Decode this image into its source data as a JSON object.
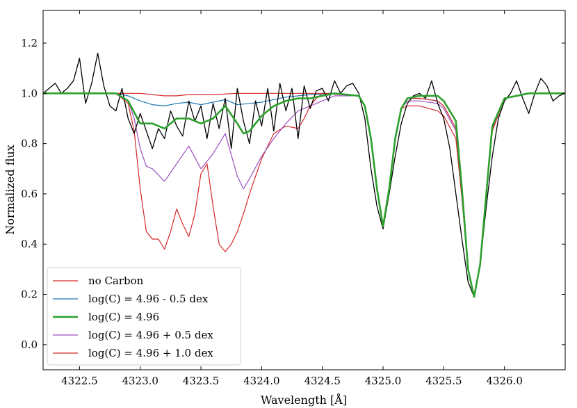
{
  "chart_data": {
    "type": "line",
    "title": "",
    "xlabel": "Wavelength [Å]",
    "ylabel": "Normalized flux",
    "xlim": [
      4322.2,
      4326.5
    ],
    "ylim": [
      -0.1,
      1.33
    ],
    "x_ticks": [
      4322.5,
      4323.0,
      4323.5,
      4324.0,
      4324.5,
      4325.0,
      4325.5,
      4326.0
    ],
    "x_tick_labels": [
      "4322.5",
      "4323.0",
      "4323.5",
      "4324.0",
      "4324.5",
      "4325.0",
      "4325.5",
      "4326.0"
    ],
    "y_ticks": [
      0.0,
      0.2,
      0.4,
      0.6,
      0.8,
      1.0,
      1.2
    ],
    "y_tick_labels": [
      "0.0",
      "0.2",
      "0.4",
      "0.6",
      "0.8",
      "1.0",
      "1.2"
    ],
    "grid": false,
    "legend_position": "lower-left",
    "observed": {
      "color": "#000000",
      "x": [
        4322.2,
        4322.25,
        4322.3,
        4322.35,
        4322.4,
        4322.45,
        4322.5,
        4322.55,
        4322.6,
        4322.65,
        4322.7,
        4322.75,
        4322.8,
        4322.85,
        4322.9,
        4322.95,
        4323.0,
        4323.05,
        4323.1,
        4323.15,
        4323.2,
        4323.25,
        4323.3,
        4323.35,
        4323.4,
        4323.45,
        4323.5,
        4323.55,
        4323.6,
        4323.65,
        4323.7,
        4323.75,
        4323.8,
        4323.85,
        4323.9,
        4323.95,
        4324.0,
        4324.05,
        4324.1,
        4324.15,
        4324.2,
        4324.25,
        4324.3,
        4324.35,
        4324.4,
        4324.45,
        4324.5,
        4324.55,
        4324.6,
        4324.65,
        4324.7,
        4324.75,
        4324.8,
        4324.85,
        4324.9,
        4324.95,
        4325.0,
        4325.05,
        4325.1,
        4325.15,
        4325.2,
        4325.25,
        4325.3,
        4325.35,
        4325.4,
        4325.45,
        4325.5,
        4325.55,
        4325.6,
        4325.65,
        4325.7,
        4325.75,
        4325.8,
        4325.85,
        4325.9,
        4325.95,
        4326.0,
        4326.05,
        4326.1,
        4326.15,
        4326.2,
        4326.25,
        4326.3,
        4326.35,
        4326.4,
        4326.45,
        4326.5
      ],
      "y": [
        1.0,
        1.02,
        1.04,
        1.0,
        1.02,
        1.05,
        1.14,
        0.96,
        1.04,
        1.16,
        1.03,
        0.95,
        0.93,
        1.02,
        0.9,
        0.84,
        0.92,
        0.85,
        0.78,
        0.86,
        0.82,
        0.93,
        0.87,
        0.83,
        0.97,
        0.89,
        0.95,
        0.82,
        0.96,
        0.86,
        0.98,
        0.78,
        1.02,
        0.89,
        0.8,
        0.97,
        0.87,
        1.02,
        0.85,
        1.04,
        0.93,
        1.02,
        0.82,
        1.03,
        0.94,
        1.01,
        1.02,
        0.97,
        1.05,
        1.0,
        1.03,
        1.04,
        1.0,
        0.9,
        0.7,
        0.55,
        0.46,
        0.6,
        0.75,
        0.88,
        0.96,
        0.99,
        1.0,
        0.98,
        1.05,
        0.96,
        0.9,
        0.78,
        0.6,
        0.42,
        0.25,
        0.19,
        0.32,
        0.55,
        0.75,
        0.9,
        0.97,
        1.0,
        1.05,
        0.98,
        0.92,
        1.0,
        1.06,
        1.03,
        0.97,
        0.99,
        1.0
      ]
    },
    "series": [
      {
        "name": "no Carbon",
        "color": "#d62728",
        "width": 1.2,
        "x": [
          4322.2,
          4322.8,
          4323.0,
          4323.1,
          4323.2,
          4323.3,
          4323.4,
          4323.5,
          4323.6,
          4323.8,
          4324.0,
          4324.5,
          4324.8,
          4324.85,
          4324.9,
          4324.95,
          4325.0,
          4325.05,
          4325.1,
          4325.15,
          4325.2,
          4325.3,
          4325.45,
          4325.5,
          4325.6,
          4325.65,
          4325.7,
          4325.75,
          4325.8,
          4325.85,
          4325.9,
          4326.0,
          4326.2,
          4326.5
        ],
        "y": [
          1.0,
          1.0,
          1.0,
          0.995,
          0.99,
          0.99,
          0.995,
          0.995,
          0.995,
          1.0,
          1.0,
          1.0,
          0.99,
          0.95,
          0.82,
          0.62,
          0.47,
          0.62,
          0.82,
          0.94,
          0.98,
          0.98,
          0.97,
          0.95,
          0.86,
          0.6,
          0.3,
          0.19,
          0.32,
          0.6,
          0.86,
          0.98,
          1.0,
          1.0
        ]
      },
      {
        "name": "log(C) = 4.96 - 0.5 dex",
        "color": "#1f77b4",
        "width": 1.2,
        "x": [
          4322.2,
          4322.8,
          4322.9,
          4323.0,
          4323.1,
          4323.2,
          4323.3,
          4323.4,
          4323.5,
          4323.6,
          4323.7,
          4323.8,
          4323.9,
          4324.0,
          4324.2,
          4324.4,
          4324.6,
          4324.8,
          4324.85,
          4324.9,
          4324.95,
          4325.0,
          4325.05,
          4325.1,
          4325.15,
          4325.2,
          4325.3,
          4325.45,
          4325.5,
          4325.6,
          4325.65,
          4325.7,
          4325.75,
          4325.8,
          4325.85,
          4325.9,
          4326.0,
          4326.2,
          4326.5
        ],
        "y": [
          1.0,
          1.0,
          0.99,
          0.97,
          0.955,
          0.95,
          0.96,
          0.965,
          0.955,
          0.965,
          0.975,
          0.955,
          0.96,
          0.965,
          0.985,
          0.995,
          1.0,
          0.99,
          0.95,
          0.82,
          0.62,
          0.47,
          0.62,
          0.82,
          0.94,
          0.98,
          0.98,
          0.97,
          0.95,
          0.86,
          0.6,
          0.3,
          0.19,
          0.32,
          0.6,
          0.86,
          0.98,
          1.0,
          1.0
        ]
      },
      {
        "name": "log(C) = 4.96",
        "color": "#2ca02c",
        "width": 2.6,
        "x": [
          4322.2,
          4322.8,
          4322.9,
          4323.0,
          4323.1,
          4323.2,
          4323.3,
          4323.4,
          4323.5,
          4323.6,
          4323.7,
          4323.8,
          4323.85,
          4323.9,
          4324.0,
          4324.1,
          4324.2,
          4324.3,
          4324.4,
          4324.5,
          4324.6,
          4324.8,
          4324.85,
          4324.9,
          4324.95,
          4325.0,
          4325.05,
          4325.1,
          4325.15,
          4325.2,
          4325.3,
          4325.45,
          4325.5,
          4325.6,
          4325.65,
          4325.7,
          4325.75,
          4325.8,
          4325.85,
          4325.9,
          4326.0,
          4326.2,
          4326.5
        ],
        "y": [
          1.0,
          1.0,
          0.97,
          0.88,
          0.88,
          0.86,
          0.9,
          0.9,
          0.88,
          0.9,
          0.95,
          0.88,
          0.84,
          0.85,
          0.91,
          0.95,
          0.97,
          0.98,
          0.98,
          0.99,
          1.0,
          0.99,
          0.95,
          0.82,
          0.62,
          0.47,
          0.62,
          0.82,
          0.94,
          0.98,
          0.99,
          0.99,
          0.97,
          0.89,
          0.62,
          0.3,
          0.19,
          0.32,
          0.6,
          0.87,
          0.98,
          1.0,
          1.0
        ]
      },
      {
        "name": "log(C) = 4.96 + 0.5 dex",
        "color": "#9b4fbf",
        "width": 1.2,
        "x": [
          4322.2,
          4322.8,
          4322.9,
          4322.95,
          4323.0,
          4323.05,
          4323.1,
          4323.2,
          4323.3,
          4323.4,
          4323.5,
          4323.6,
          4323.7,
          4323.8,
          4323.85,
          4323.9,
          4324.0,
          4324.1,
          4324.2,
          4324.3,
          4324.4,
          4324.5,
          4324.6,
          4324.8,
          4324.85,
          4324.9,
          4324.95,
          4325.0,
          4325.05,
          4325.1,
          4325.15,
          4325.2,
          4325.3,
          4325.45,
          4325.5,
          4325.6,
          4325.65,
          4325.7,
          4325.75,
          4325.8,
          4325.85,
          4325.9,
          4326.0,
          4326.2,
          4326.5
        ],
        "y": [
          1.0,
          1.0,
          0.97,
          0.9,
          0.78,
          0.71,
          0.7,
          0.65,
          0.72,
          0.79,
          0.7,
          0.76,
          0.84,
          0.67,
          0.62,
          0.66,
          0.75,
          0.82,
          0.88,
          0.93,
          0.95,
          0.97,
          0.99,
          0.99,
          0.95,
          0.82,
          0.62,
          0.47,
          0.62,
          0.82,
          0.94,
          0.97,
          0.97,
          0.96,
          0.94,
          0.85,
          0.6,
          0.3,
          0.19,
          0.32,
          0.6,
          0.86,
          0.98,
          1.0,
          1.0
        ]
      },
      {
        "name": "log(C) = 4.96 + 1.0 dex",
        "color": "#d62728",
        "width": 1.2,
        "x": [
          4322.2,
          4322.8,
          4322.9,
          4322.95,
          4323.0,
          4323.05,
          4323.1,
          4323.15,
          4323.2,
          4323.25,
          4323.3,
          4323.35,
          4323.4,
          4323.45,
          4323.5,
          4323.55,
          4323.6,
          4323.65,
          4323.7,
          4323.75,
          4323.8,
          4323.85,
          4323.9,
          4324.0,
          4324.1,
          4324.2,
          4324.3,
          4324.35,
          4324.4,
          4324.45,
          4324.5,
          4324.6,
          4324.8,
          4324.85,
          4324.9,
          4324.95,
          4325.0,
          4325.05,
          4325.1,
          4325.15,
          4325.2,
          4325.3,
          4325.45,
          4325.5,
          4325.6,
          4325.65,
          4325.7,
          4325.75,
          4325.8,
          4325.85,
          4325.9,
          4326.0,
          4326.2,
          4326.5
        ],
        "y": [
          1.0,
          1.0,
          0.96,
          0.85,
          0.62,
          0.45,
          0.42,
          0.42,
          0.38,
          0.45,
          0.54,
          0.48,
          0.43,
          0.52,
          0.68,
          0.72,
          0.55,
          0.4,
          0.37,
          0.4,
          0.45,
          0.52,
          0.6,
          0.74,
          0.84,
          0.87,
          0.86,
          0.9,
          0.95,
          0.98,
          1.0,
          1.0,
          0.99,
          0.95,
          0.82,
          0.62,
          0.47,
          0.62,
          0.82,
          0.94,
          0.95,
          0.95,
          0.93,
          0.91,
          0.82,
          0.58,
          0.3,
          0.19,
          0.32,
          0.6,
          0.85,
          0.98,
          1.0,
          1.0
        ]
      }
    ]
  }
}
